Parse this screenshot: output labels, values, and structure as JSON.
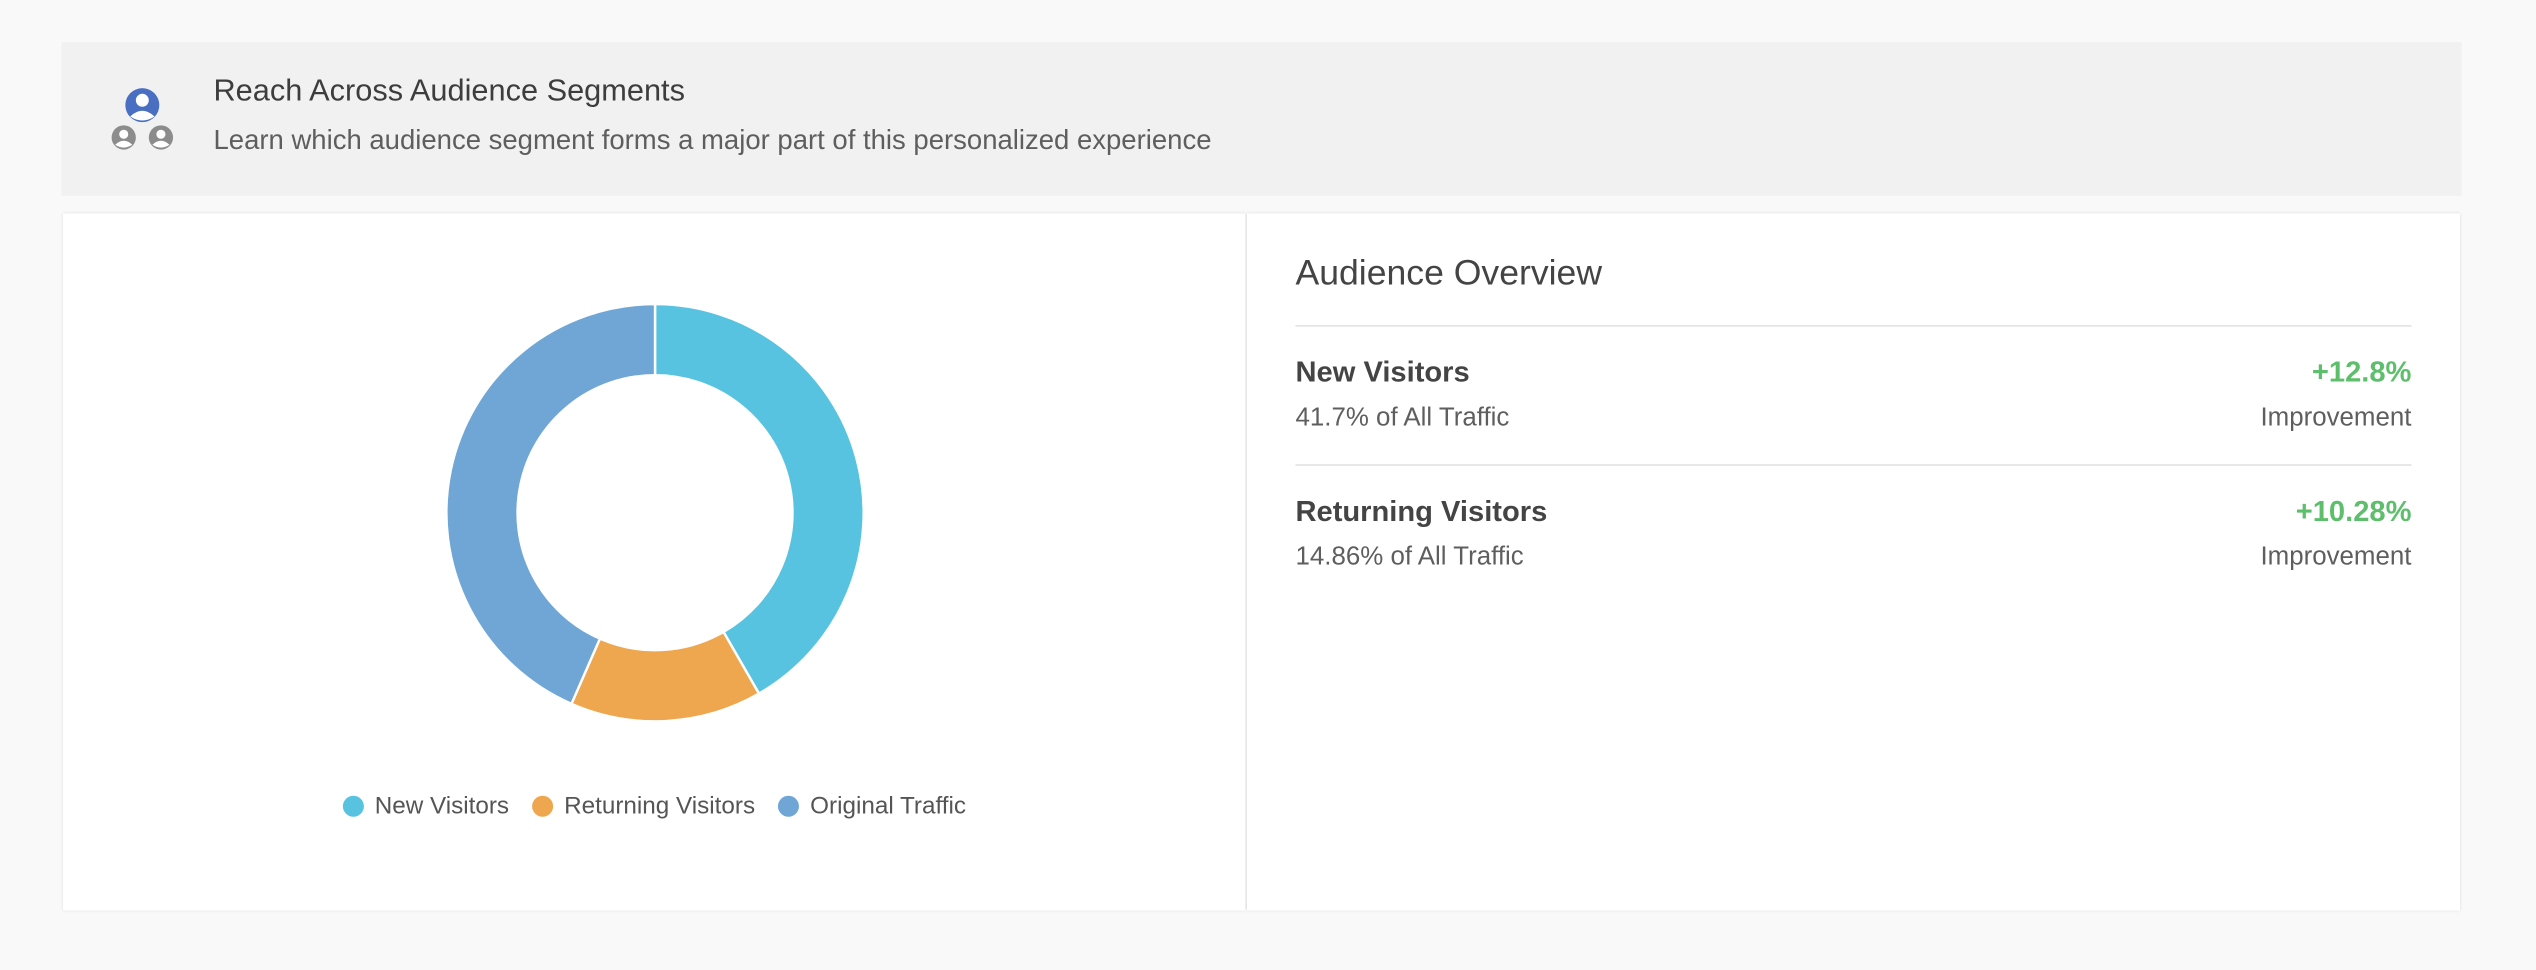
{
  "header": {
    "icon": "audience-segments-icon",
    "title": "Reach Across Audience Segments",
    "subtitle": "Learn which audience segment forms a major part of this personalized experience"
  },
  "chart_data": {
    "type": "pie",
    "donut": true,
    "categories": [
      "New Visitors",
      "Returning Visitors",
      "Original Traffic"
    ],
    "values": [
      41.7,
      14.86,
      43.44
    ],
    "colors": [
      "#58c3e0",
      "#efa74f",
      "#6fa6d6"
    ],
    "legend": "bottom"
  },
  "overview": {
    "title": "Audience Overview",
    "segments": [
      {
        "name": "New Visitors",
        "share": "41.7% of All Traffic",
        "change": "+12.8%",
        "change_label": "Improvement"
      },
      {
        "name": "Returning Visitors",
        "share": "14.86% of All Traffic",
        "change": "+10.28%",
        "change_label": "Improvement"
      }
    ]
  },
  "colors": {
    "positive": "#5dbf6b",
    "icon_primary": "#4a6fc2",
    "icon_secondary": "#8c8c8c"
  }
}
